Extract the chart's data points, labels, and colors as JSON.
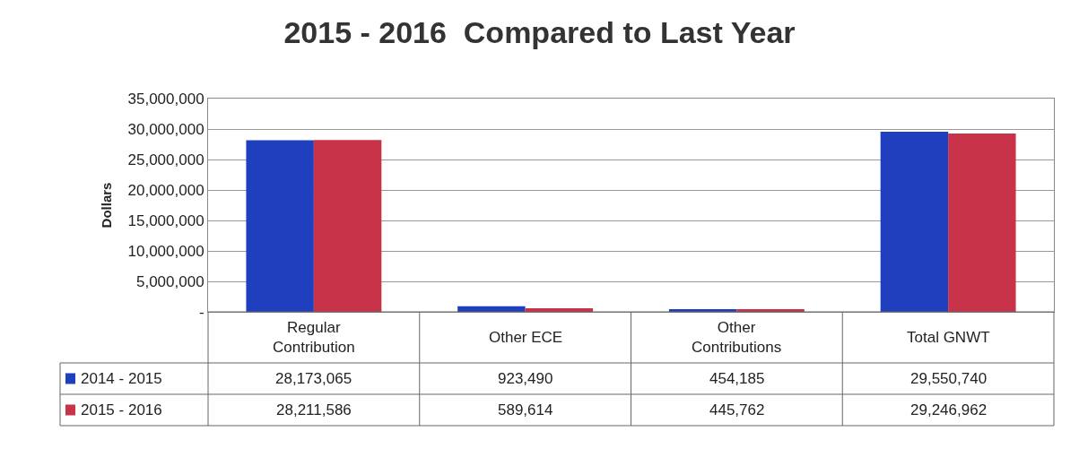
{
  "chart_data": {
    "type": "bar",
    "title": "2015 - 2016  Compared to Last Year",
    "ylabel": "Dollars",
    "categories": [
      "Regular\nContribution",
      "Other ECE",
      "Other\nContributions",
      "Total GNWT"
    ],
    "series": [
      {
        "name": "2014 - 2015",
        "color": "#1f3fbf",
        "values": [
          28173065,
          923490,
          454185,
          29550740
        ],
        "value_labels": [
          "28,173,065",
          "923,490",
          "454,185",
          "29,550,740"
        ]
      },
      {
        "name": "2015 - 2016",
        "color": "#c8334a",
        "values": [
          28211586,
          589614,
          445762,
          29246962
        ],
        "value_labels": [
          "28,211,586",
          "589,614",
          "445,762",
          "29,246,962"
        ]
      }
    ],
    "ylim": [
      0,
      35000000
    ],
    "yticks": [
      {
        "value": 0,
        "label": "-"
      },
      {
        "value": 5000000,
        "label": "5,000,000"
      },
      {
        "value": 10000000,
        "label": "10,000,000"
      },
      {
        "value": 15000000,
        "label": "15,000,000"
      },
      {
        "value": 20000000,
        "label": "20,000,000"
      },
      {
        "value": 25000000,
        "label": "25,000,000"
      },
      {
        "value": 30000000,
        "label": "30,000,000"
      },
      {
        "value": 35000000,
        "label": "35,000,000"
      }
    ],
    "grid": "y",
    "legend": "bottom left"
  }
}
